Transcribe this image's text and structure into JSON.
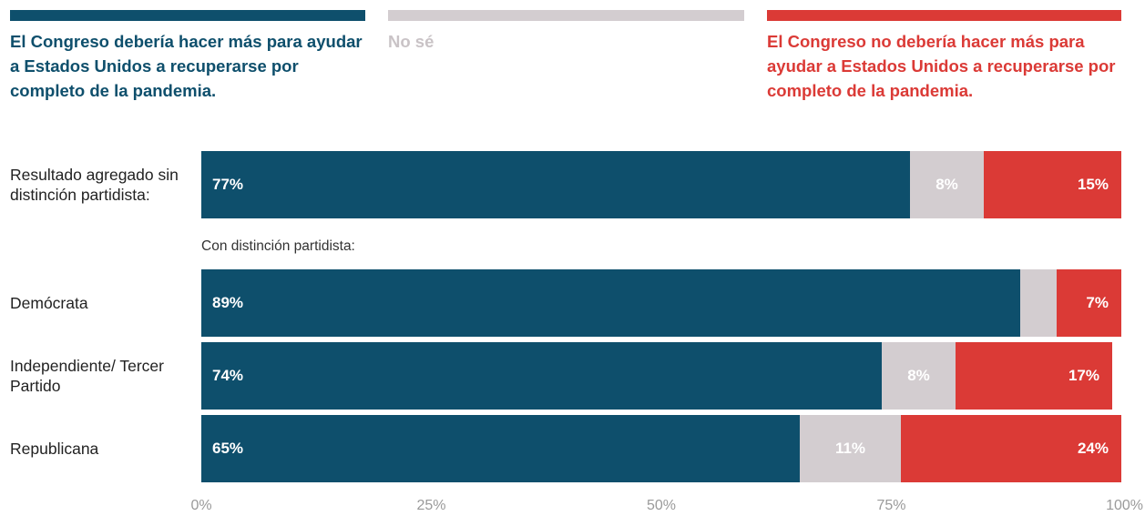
{
  "colors": {
    "yes": "#0e4f6c",
    "dont_know": "#d3cdd0",
    "no": "#db3a36"
  },
  "legend": {
    "yes": "El Congreso debería hacer más para ayudar a Estados Unidos a recuperarse por completo de la pandemia.",
    "dont_know": "No sé",
    "no": "El Congreso no debería hacer más para ayudar a Estados Unidos a recuperarse por completo de la pandemia."
  },
  "subgroup_label": "Con distinción partidista:",
  "chart_data": {
    "type": "bar",
    "orientation": "horizontal",
    "stacked": true,
    "categories": [
      "Resultado agregado sin distinción partidista:",
      "Demócrata",
      "Independiente/ Tercer Partido",
      "Republicana"
    ],
    "series": [
      {
        "name": "El Congreso debería hacer más para ayudar a Estados Unidos a recuperarse por completo de la pandemia.",
        "values": [
          77,
          89,
          74,
          65
        ],
        "labels": [
          "77%",
          "89%",
          "74%",
          "65%"
        ]
      },
      {
        "name": "No sé",
        "values": [
          8,
          4,
          8,
          11
        ],
        "labels": [
          "8%",
          "",
          "8%",
          "11%"
        ]
      },
      {
        "name": "El Congreso no debería hacer más para ayudar a Estados Unidos a recuperarse por completo de la pandemia.",
        "values": [
          15,
          7,
          17,
          24
        ],
        "labels": [
          "15%",
          "7%",
          "17%",
          "24%"
        ]
      }
    ],
    "xlim": [
      0,
      100
    ],
    "ticks": [
      0,
      25,
      50,
      75,
      100
    ],
    "tick_labels": [
      "0%",
      "25%",
      "50%",
      "75%",
      "100%"
    ],
    "legend_position": "top",
    "grid": false
  }
}
